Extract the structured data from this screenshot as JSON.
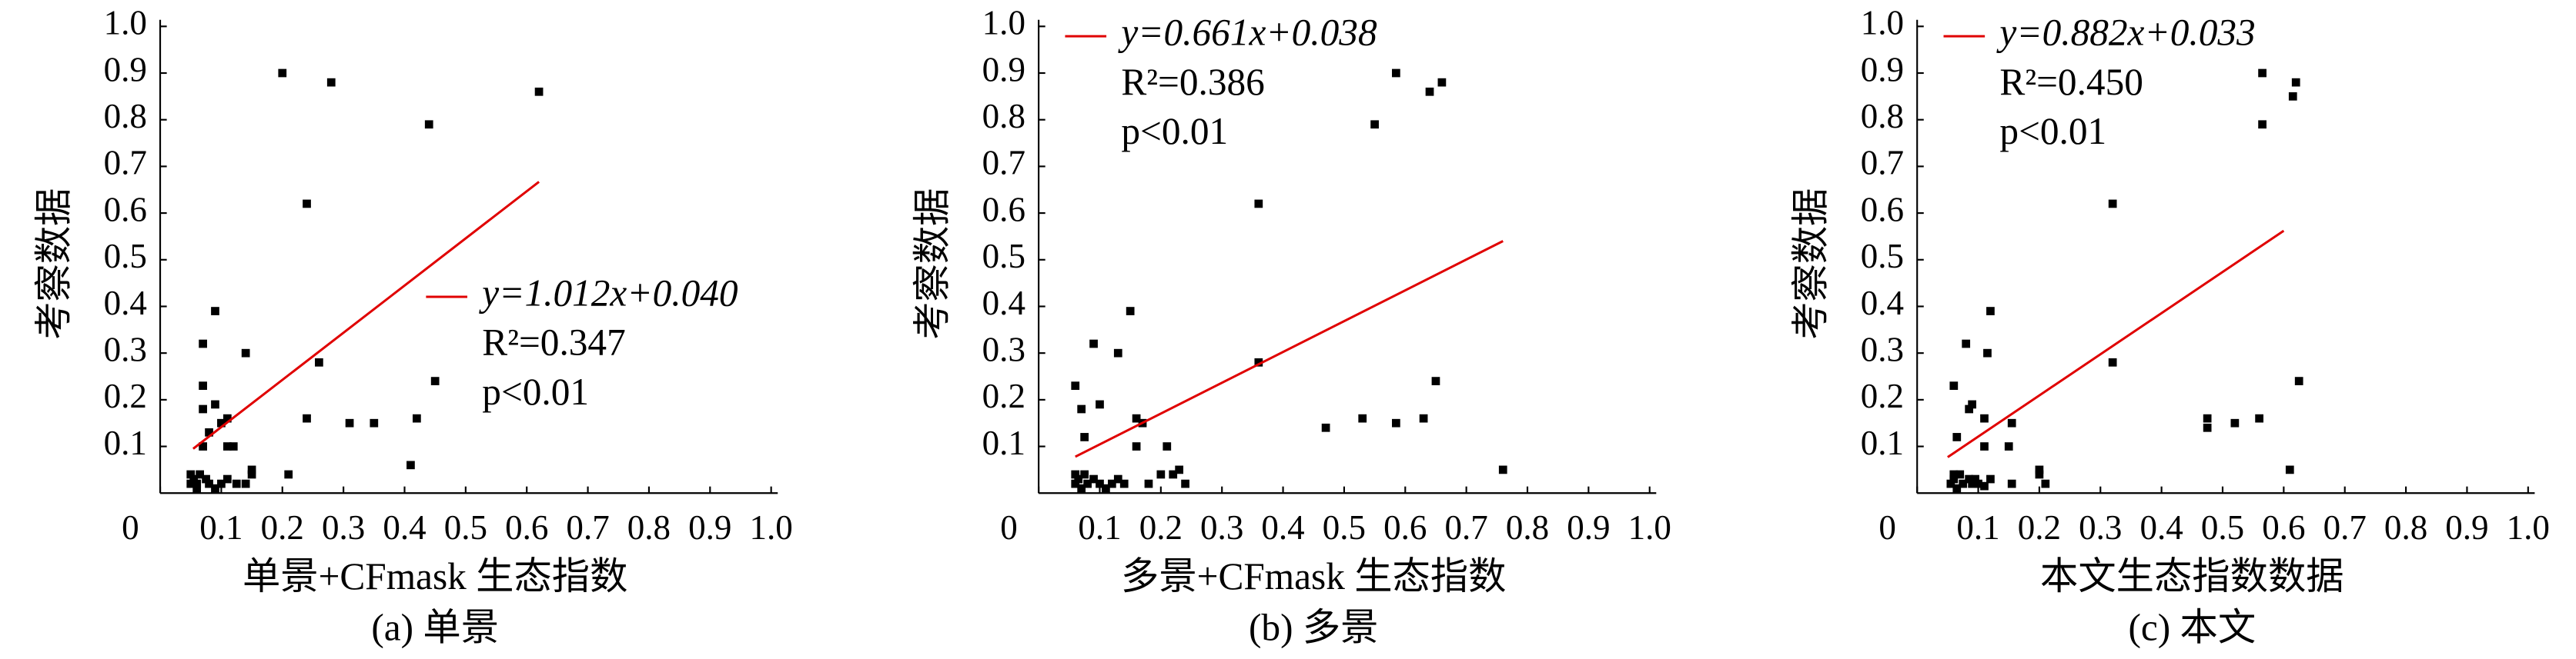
{
  "chart_data": [
    {
      "type": "scatter",
      "caption": "(a) 单景",
      "x_label": "单景+CFmask 生态指数",
      "y_label": "考察数据",
      "equation": "y=1.012x+0.040",
      "r2": "R²=0.347",
      "p": "p<0.01",
      "legend": "center-right",
      "xlim": [
        0,
        1
      ],
      "ylim": [
        0,
        1
      ],
      "xticks": [
        0,
        0.1,
        0.2,
        0.3,
        0.4,
        0.5,
        0.6,
        0.7,
        0.8,
        0.9,
        {
          "value": 1,
          "label": "1.0"
        }
      ],
      "yticks": [
        0.1,
        0.2,
        0.3,
        0.4,
        0.5,
        0.6,
        0.7,
        0.8,
        0.9,
        {
          "value": 1,
          "label": "1.0"
        }
      ],
      "series": [
        {
          "color": "#000000",
          "x": [
            0.2,
            0.28,
            0.62,
            0.44,
            0.24,
            0.26,
            0.45,
            0.09,
            0.14,
            0.07,
            0.07,
            0.07,
            0.09,
            0.24,
            0.42,
            0.31,
            0.35,
            0.11,
            0.1,
            0.11,
            0.12,
            0.07,
            0.08,
            0.41,
            0.21,
            0.15,
            0.15,
            0.14,
            0.11,
            0.09,
            0.05,
            0.055,
            0.06,
            0.065,
            0.06,
            0.075,
            0.08,
            0.05,
            0.1,
            0.125
          ],
          "values": [
            0.9,
            0.88,
            0.86,
            0.79,
            0.62,
            0.28,
            0.24,
            0.39,
            0.3,
            0.32,
            0.23,
            0.18,
            0.19,
            0.16,
            0.16,
            0.15,
            0.15,
            0.16,
            0.15,
            0.1,
            0.1,
            0.1,
            0.13,
            0.06,
            0.04,
            0.05,
            0.04,
            0.02,
            0.03,
            0.01,
            0.02,
            0.03,
            0.01,
            0.04,
            0.02,
            0.03,
            0.02,
            0.04,
            0.02,
            0.02
          ]
        }
      ],
      "fit": {
        "color": "#e00000",
        "x": [
          0.054,
          0.62
        ],
        "y": [
          0.095,
          0.667
        ]
      }
    },
    {
      "type": "scatter",
      "caption": "(b) 多景",
      "x_label": "多景+CFmask 生态指数",
      "y_label": "考察数据",
      "equation": "y=0.661x+0.038",
      "r2": "R²=0.386",
      "p": "p<0.01",
      "legend": "upper-left",
      "xlim": [
        0,
        1
      ],
      "ylim": [
        0,
        1
      ],
      "xticks": [
        0,
        0.1,
        0.2,
        0.3,
        0.4,
        0.5,
        0.6,
        0.7,
        0.8,
        0.9,
        {
          "value": 1,
          "label": "1.0"
        }
      ],
      "yticks": [
        0.1,
        0.2,
        0.3,
        0.4,
        0.5,
        0.6,
        0.7,
        0.8,
        0.9,
        {
          "value": 1,
          "label": "1.0"
        }
      ],
      "series": [
        {
          "color": "#000000",
          "x": [
            0.585,
            0.66,
            0.64,
            0.55,
            0.36,
            0.36,
            0.65,
            0.15,
            0.13,
            0.09,
            0.06,
            0.07,
            0.1,
            0.16,
            0.53,
            0.63,
            0.585,
            0.47,
            0.17,
            0.16,
            0.21,
            0.075,
            0.76,
            0.23,
            0.22,
            0.24,
            0.18,
            0.2,
            0.13,
            0.11,
            0.06,
            0.065,
            0.07,
            0.075,
            0.08,
            0.09,
            0.1,
            0.06,
            0.12,
            0.14
          ],
          "values": [
            0.9,
            0.88,
            0.86,
            0.79,
            0.62,
            0.28,
            0.24,
            0.39,
            0.3,
            0.32,
            0.23,
            0.18,
            0.19,
            0.16,
            0.16,
            0.16,
            0.15,
            0.14,
            0.15,
            0.1,
            0.1,
            0.12,
            0.05,
            0.05,
            0.04,
            0.02,
            0.02,
            0.04,
            0.03,
            0.01,
            0.02,
            0.03,
            0.01,
            0.04,
            0.02,
            0.03,
            0.02,
            0.04,
            0.02,
            0.02
          ]
        }
      ],
      "fit": {
        "color": "#e00000",
        "x": [
          0.06,
          0.76
        ],
        "y": [
          0.078,
          0.54
        ]
      }
    },
    {
      "type": "scatter",
      "caption": "(c) 本文",
      "x_label": "本文生态指数数据",
      "y_label": "考察数据",
      "equation": "y=0.882x+0.033",
      "r2": "R²=0.450",
      "p": "p<0.01",
      "legend": "upper-left",
      "xlim": [
        0,
        1
      ],
      "ylim": [
        0,
        1
      ],
      "xticks": [
        0,
        0.1,
        0.2,
        0.3,
        0.4,
        0.5,
        0.6,
        0.7,
        0.8,
        0.9,
        {
          "value": 1,
          "label": "1.0"
        }
      ],
      "yticks": [
        0.1,
        0.2,
        0.3,
        0.4,
        0.5,
        0.6,
        0.7,
        0.8,
        0.9,
        {
          "value": 1,
          "label": "1.0"
        }
      ],
      "series": [
        {
          "color": "#000000",
          "x": [
            0.565,
            0.62,
            0.615,
            0.565,
            0.32,
            0.32,
            0.625,
            0.12,
            0.115,
            0.08,
            0.06,
            0.085,
            0.09,
            0.11,
            0.475,
            0.52,
            0.56,
            0.475,
            0.155,
            0.15,
            0.11,
            0.065,
            0.61,
            0.2,
            0.2,
            0.21,
            0.155,
            0.12,
            0.095,
            0.055,
            0.06,
            0.065,
            0.07,
            0.075,
            0.085,
            0.09,
            0.06,
            0.1,
            0.11
          ],
          "values": [
            0.9,
            0.88,
            0.85,
            0.79,
            0.62,
            0.28,
            0.24,
            0.39,
            0.3,
            0.32,
            0.23,
            0.18,
            0.19,
            0.16,
            0.16,
            0.15,
            0.16,
            0.14,
            0.15,
            0.1,
            0.1,
            0.12,
            0.05,
            0.05,
            0.04,
            0.02,
            0.02,
            0.03,
            0.03,
            0.02,
            0.03,
            0.01,
            0.04,
            0.02,
            0.03,
            0.02,
            0.04,
            0.02,
            0.015
          ]
        }
      ],
      "fit": {
        "color": "#e00000",
        "x": [
          0.05,
          0.6
        ],
        "y": [
          0.077,
          0.562
        ]
      }
    }
  ]
}
